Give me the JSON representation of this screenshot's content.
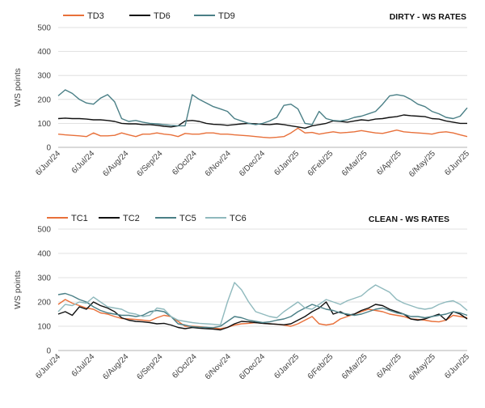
{
  "chart_data": [
    {
      "type": "line",
      "title": "DIRTY - WS RATES",
      "ylabel": "WS points",
      "ylim": [
        0,
        500
      ],
      "yticks": [
        0,
        100,
        200,
        300,
        400,
        500
      ],
      "xticks": [
        "6/Jun/24",
        "6/Jul/24",
        "6/Aug/24",
        "6/Sep/24",
        "6/Oct/24",
        "6/Nov/24",
        "6/Dec/24",
        "6/Jan/25",
        "6/Feb/25",
        "6/Mar/25",
        "6/Apr/25",
        "6/May/25",
        "6/Jun/25"
      ],
      "legend_position": "top-left",
      "grid": "horizontal",
      "series": [
        {
          "name": "TD3",
          "color": "#e8703a",
          "values": [
            55,
            52,
            50,
            48,
            45,
            60,
            48,
            48,
            50,
            60,
            52,
            45,
            55,
            55,
            60,
            55,
            52,
            45,
            58,
            55,
            55,
            60,
            60,
            55,
            55,
            52,
            50,
            48,
            45,
            42,
            40,
            42,
            45,
            60,
            80,
            60,
            62,
            55,
            60,
            65,
            60,
            62,
            65,
            70,
            65,
            60,
            58,
            65,
            72,
            65,
            62,
            60,
            58,
            55,
            62,
            65,
            60,
            52,
            45
          ]
        },
        {
          "name": "TD6",
          "color": "#111111",
          "values": [
            120,
            122,
            120,
            120,
            118,
            115,
            115,
            112,
            108,
            100,
            98,
            98,
            95,
            95,
            92,
            88,
            85,
            90,
            110,
            112,
            108,
            100,
            96,
            95,
            92,
            95,
            98,
            100,
            98,
            96,
            95,
            98,
            95,
            90,
            85,
            80,
            90,
            95,
            100,
            110,
            108,
            105,
            110,
            115,
            112,
            118,
            120,
            125,
            128,
            135,
            132,
            130,
            128,
            120,
            118,
            110,
            105,
            100,
            100
          ]
        },
        {
          "name": "TD9",
          "color": "#4a7f86",
          "values": [
            215,
            240,
            225,
            200,
            185,
            180,
            205,
            220,
            190,
            120,
            108,
            112,
            105,
            100,
            98,
            95,
            92,
            90,
            90,
            220,
            200,
            185,
            170,
            160,
            150,
            120,
            110,
            100,
            95,
            100,
            110,
            125,
            175,
            180,
            160,
            100,
            95,
            150,
            120,
            112,
            110,
            115,
            125,
            130,
            140,
            150,
            180,
            215,
            220,
            215,
            200,
            180,
            170,
            150,
            140,
            125,
            120,
            130,
            165
          ]
        }
      ]
    },
    {
      "type": "line",
      "title": "CLEAN - WS RATES",
      "ylabel": "WS points",
      "ylim": [
        0,
        500
      ],
      "yticks": [
        0,
        100,
        200,
        300,
        400,
        500
      ],
      "xticks": [
        "6/Jun/24",
        "6/Jul/24",
        "6/Aug/24",
        "6/Sep/24",
        "6/Oct/24",
        "6/Nov/24",
        "6/Dec/24",
        "6/Jan/25",
        "6/Feb/25",
        "6/Mar/25",
        "6/Apr/25",
        "6/May/25",
        "6/Jun/25"
      ],
      "legend_position": "top-left",
      "grid": "horizontal",
      "series": [
        {
          "name": "TC1",
          "color": "#e8703a",
          "values": [
            190,
            210,
            195,
            185,
            175,
            170,
            155,
            150,
            140,
            132,
            130,
            128,
            125,
            122,
            135,
            145,
            140,
            120,
            100,
            100,
            98,
            95,
            92,
            90,
            95,
            105,
            110,
            112,
            115,
            112,
            110,
            108,
            105,
            100,
            110,
            125,
            140,
            110,
            105,
            110,
            130,
            140,
            150,
            160,
            170,
            165,
            160,
            150,
            145,
            140,
            130,
            128,
            125,
            120,
            118,
            125,
            145,
            140,
            135
          ]
        },
        {
          "name": "TC2",
          "color": "#111111",
          "values": [
            150,
            160,
            145,
            180,
            170,
            200,
            185,
            175,
            160,
            135,
            125,
            120,
            118,
            115,
            110,
            112,
            105,
            95,
            90,
            95,
            92,
            90,
            88,
            85,
            95,
            110,
            120,
            118,
            115,
            112,
            110,
            108,
            106,
            110,
            125,
            140,
            160,
            175,
            200,
            150,
            160,
            145,
            150,
            165,
            175,
            190,
            185,
            170,
            160,
            150,
            130,
            125,
            130,
            140,
            150,
            125,
            160,
            150,
            130
          ]
        },
        {
          "name": "TC5",
          "color": "#4a7f86",
          "values": [
            230,
            235,
            225,
            210,
            200,
            180,
            165,
            155,
            150,
            145,
            145,
            140,
            145,
            160,
            165,
            160,
            140,
            110,
            105,
            98,
            96,
            95,
            94,
            100,
            120,
            140,
            135,
            125,
            120,
            115,
            118,
            125,
            130,
            140,
            160,
            175,
            190,
            180,
            170,
            165,
            155,
            150,
            145,
            150,
            160,
            170,
            175,
            165,
            155,
            150,
            140,
            140,
            135,
            140,
            145,
            150,
            160,
            155,
            145
          ]
        },
        {
          "name": "TC6",
          "color": "#8fb9bd",
          "values": [
            160,
            190,
            185,
            200,
            195,
            220,
            200,
            180,
            175,
            170,
            155,
            150,
            140,
            145,
            175,
            170,
            140,
            125,
            120,
            115,
            112,
            110,
            108,
            105,
            200,
            280,
            250,
            200,
            160,
            150,
            140,
            135,
            160,
            180,
            200,
            175,
            170,
            190,
            210,
            200,
            190,
            205,
            215,
            225,
            250,
            270,
            255,
            240,
            210,
            195,
            185,
            175,
            170,
            175,
            190,
            200,
            205,
            190,
            165
          ]
        }
      ]
    }
  ]
}
